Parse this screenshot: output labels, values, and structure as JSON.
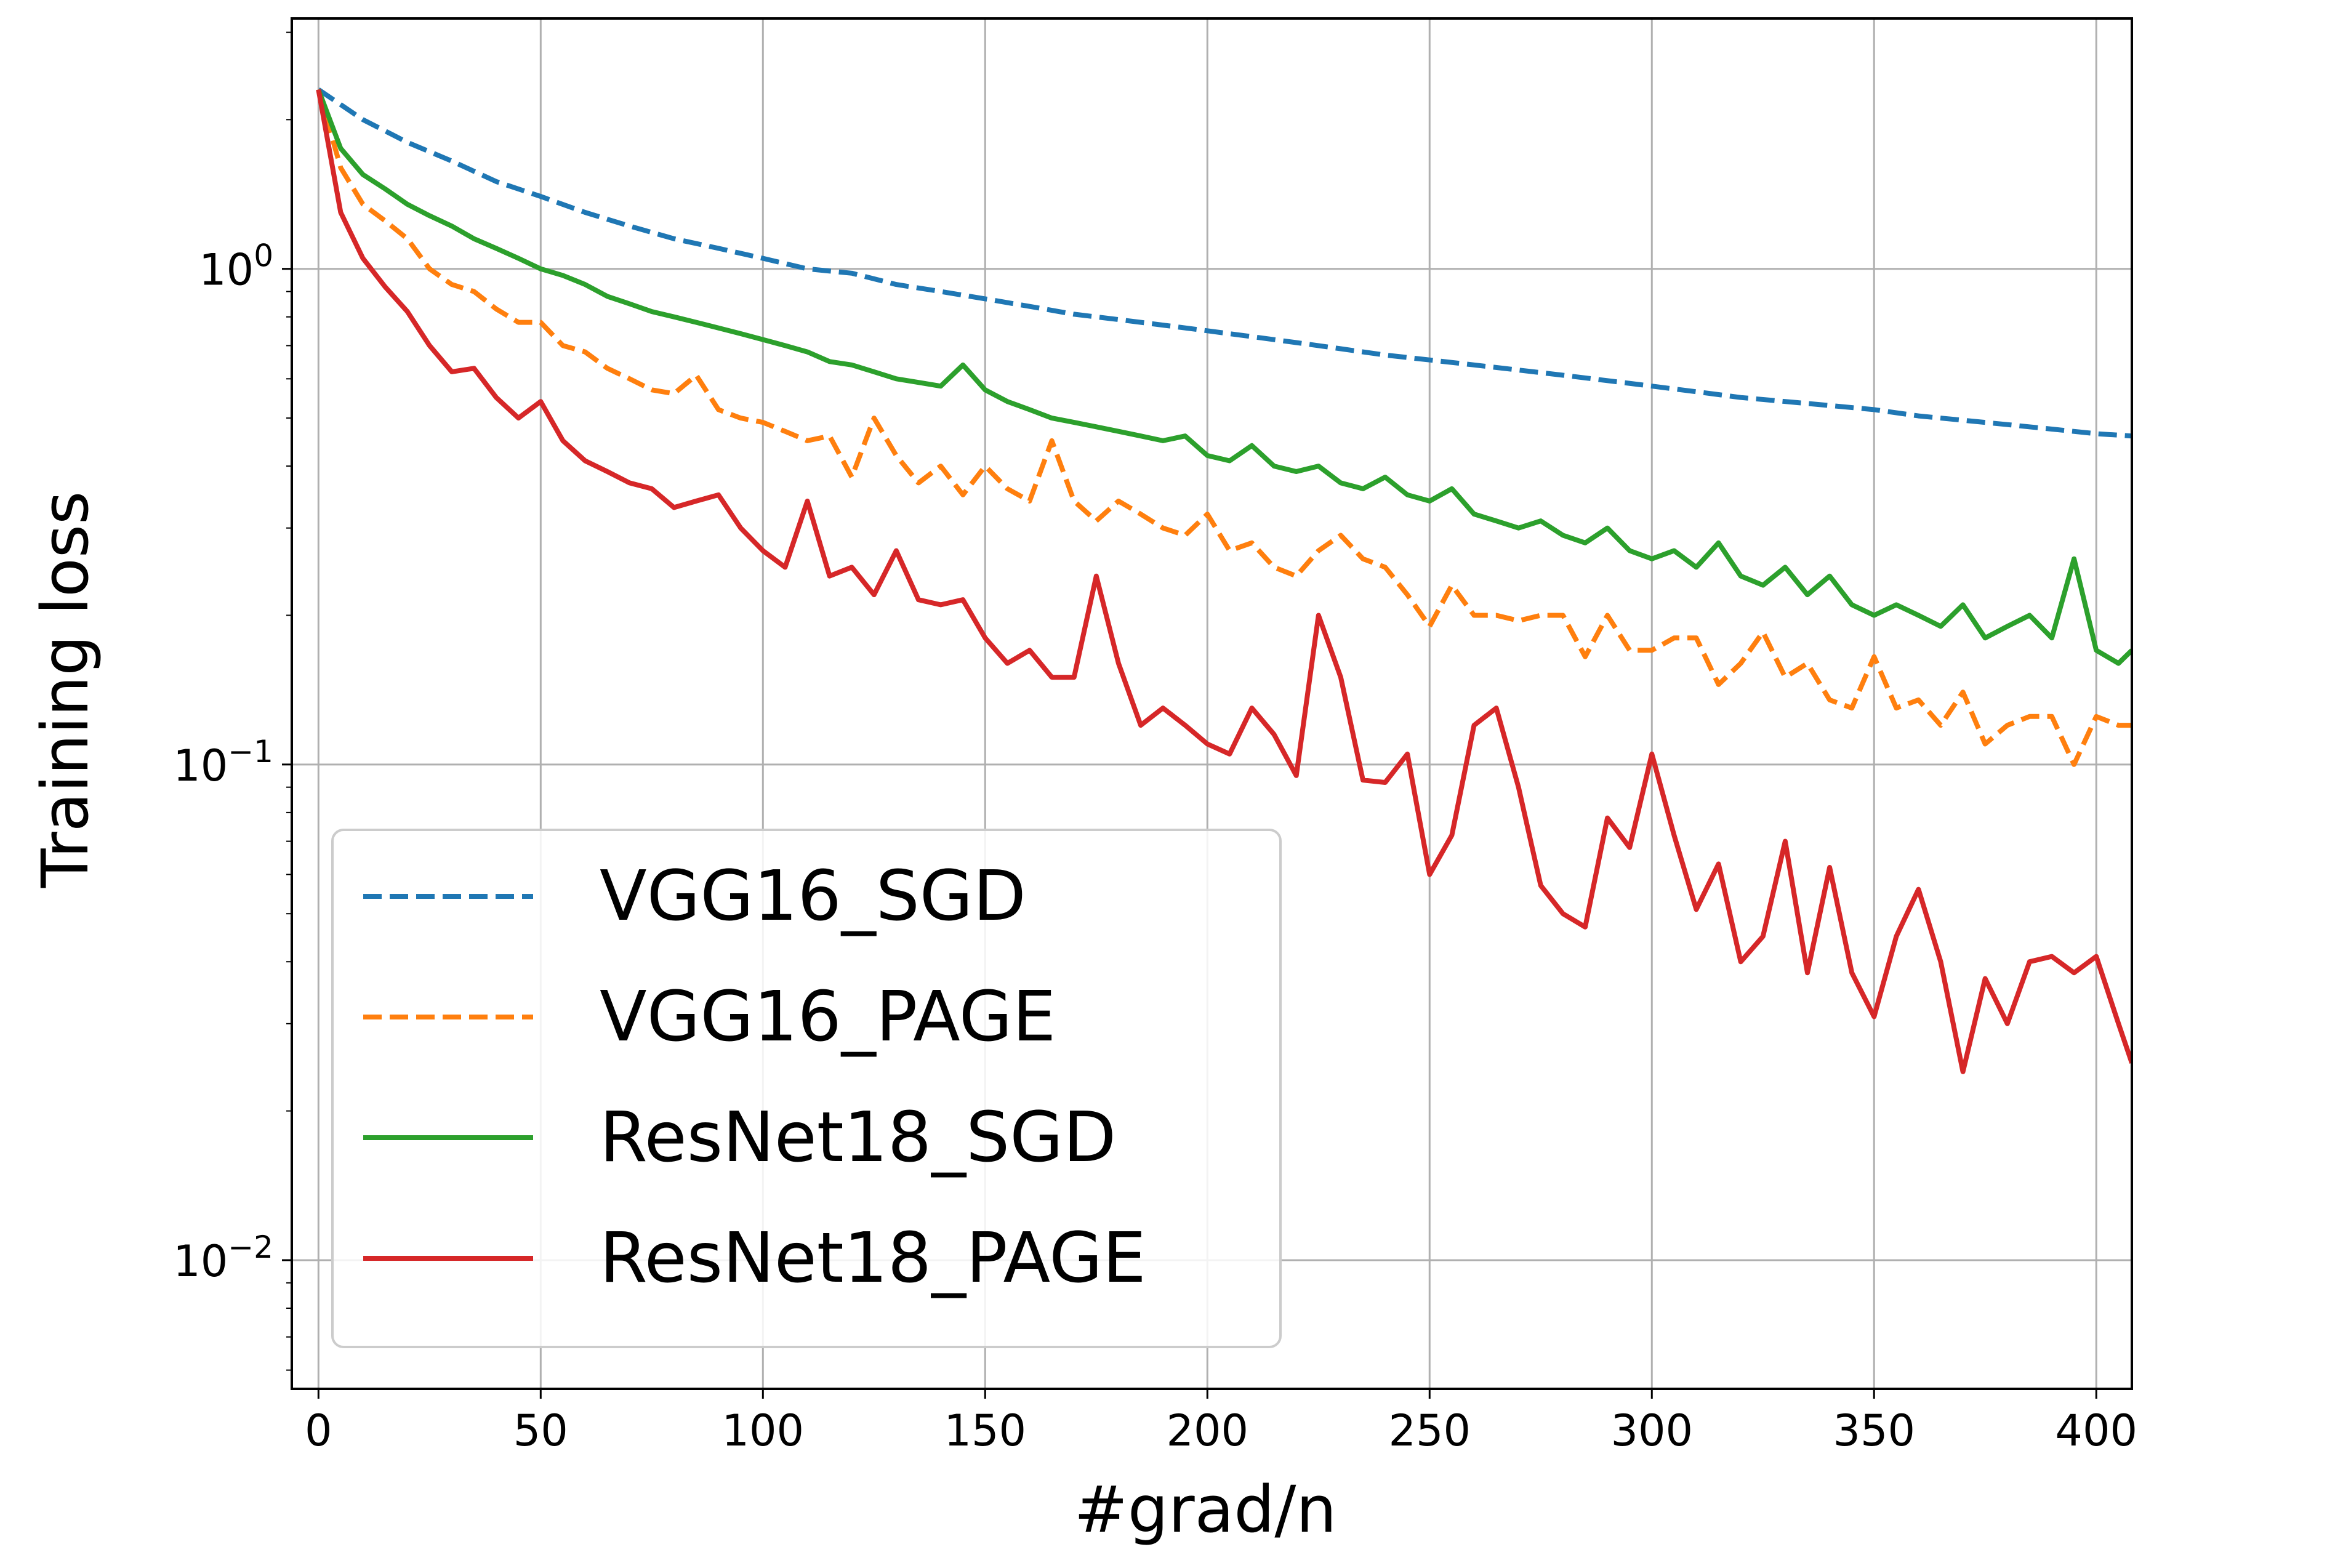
{
  "chart_data": {
    "type": "line",
    "title": "",
    "xlabel": "#grad/n",
    "ylabel": "Training loss",
    "xlim": [
      -6,
      408
    ],
    "ylim": [
      0.0055,
      3.2
    ],
    "yscale": "log",
    "grid": true,
    "legend_position": "lower-left",
    "x_ticks": [
      0,
      50,
      100,
      150,
      200,
      250,
      300,
      350,
      400
    ],
    "y_ticks": [
      {
        "value": 1,
        "base": "10",
        "exp": "0"
      },
      {
        "value": 0.1,
        "base": "10",
        "exp": "−1"
      },
      {
        "value": 0.01,
        "base": "10",
        "exp": "−2"
      }
    ],
    "series": [
      {
        "name": "VGG16_SGD",
        "color": "#1f77b4",
        "dashed": true,
        "x": [
          0,
          10,
          20,
          30,
          40,
          50,
          60,
          70,
          80,
          90,
          100,
          110,
          120,
          130,
          140,
          150,
          160,
          170,
          180,
          190,
          200,
          210,
          220,
          230,
          240,
          250,
          260,
          270,
          280,
          290,
          300,
          310,
          320,
          330,
          340,
          350,
          360,
          370,
          380,
          390,
          400,
          408
        ],
        "y": [
          2.3,
          2.0,
          1.8,
          1.65,
          1.5,
          1.4,
          1.3,
          1.22,
          1.15,
          1.1,
          1.05,
          1.0,
          0.98,
          0.93,
          0.9,
          0.87,
          0.84,
          0.81,
          0.79,
          0.77,
          0.75,
          0.73,
          0.71,
          0.69,
          0.67,
          0.655,
          0.64,
          0.625,
          0.61,
          0.595,
          0.58,
          0.565,
          0.55,
          0.54,
          0.53,
          0.52,
          0.505,
          0.495,
          0.485,
          0.475,
          0.465,
          0.46
        ]
      },
      {
        "name": "VGG16_PAGE",
        "color": "#ff7f0e",
        "dashed": true,
        "x": [
          0,
          5,
          10,
          15,
          20,
          25,
          30,
          35,
          40,
          45,
          50,
          55,
          60,
          65,
          70,
          75,
          80,
          85,
          90,
          95,
          100,
          105,
          110,
          115,
          120,
          125,
          130,
          135,
          140,
          145,
          150,
          155,
          160,
          165,
          170,
          175,
          180,
          185,
          190,
          195,
          200,
          205,
          210,
          215,
          220,
          225,
          230,
          235,
          240,
          245,
          250,
          255,
          260,
          265,
          270,
          275,
          280,
          285,
          290,
          295,
          300,
          305,
          310,
          315,
          320,
          325,
          330,
          335,
          340,
          345,
          350,
          355,
          360,
          365,
          370,
          375,
          380,
          385,
          390,
          395,
          400,
          405,
          408
        ],
        "y": [
          2.3,
          1.6,
          1.35,
          1.25,
          1.15,
          1.0,
          0.93,
          0.9,
          0.83,
          0.78,
          0.78,
          0.7,
          0.68,
          0.63,
          0.6,
          0.57,
          0.56,
          0.61,
          0.52,
          0.5,
          0.49,
          0.47,
          0.45,
          0.46,
          0.38,
          0.5,
          0.42,
          0.37,
          0.4,
          0.35,
          0.4,
          0.36,
          0.34,
          0.45,
          0.34,
          0.31,
          0.34,
          0.32,
          0.3,
          0.29,
          0.32,
          0.27,
          0.28,
          0.25,
          0.24,
          0.27,
          0.29,
          0.26,
          0.25,
          0.22,
          0.19,
          0.23,
          0.2,
          0.2,
          0.195,
          0.2,
          0.2,
          0.165,
          0.2,
          0.17,
          0.17,
          0.18,
          0.18,
          0.145,
          0.16,
          0.185,
          0.15,
          0.16,
          0.135,
          0.13,
          0.165,
          0.13,
          0.135,
          0.12,
          0.14,
          0.11,
          0.12,
          0.125,
          0.125,
          0.1,
          0.125,
          0.12,
          0.12
        ]
      },
      {
        "name": "ResNet18_SGD",
        "color": "#2ca02c",
        "dashed": false,
        "x": [
          0,
          5,
          10,
          15,
          20,
          25,
          30,
          35,
          40,
          45,
          50,
          55,
          60,
          65,
          70,
          75,
          80,
          85,
          90,
          95,
          100,
          105,
          110,
          115,
          120,
          125,
          130,
          135,
          140,
          145,
          150,
          155,
          160,
          165,
          170,
          175,
          180,
          185,
          190,
          195,
          200,
          205,
          210,
          215,
          220,
          225,
          230,
          235,
          240,
          245,
          250,
          255,
          260,
          265,
          270,
          275,
          280,
          285,
          290,
          295,
          300,
          305,
          310,
          315,
          320,
          325,
          330,
          335,
          340,
          345,
          350,
          355,
          360,
          365,
          370,
          375,
          380,
          385,
          390,
          395,
          400,
          405,
          408
        ],
        "y": [
          2.3,
          1.75,
          1.55,
          1.45,
          1.35,
          1.28,
          1.22,
          1.15,
          1.1,
          1.05,
          1.0,
          0.97,
          0.93,
          0.88,
          0.85,
          0.82,
          0.8,
          0.78,
          0.76,
          0.74,
          0.72,
          0.7,
          0.68,
          0.65,
          0.64,
          0.62,
          0.6,
          0.59,
          0.58,
          0.64,
          0.57,
          0.54,
          0.52,
          0.5,
          0.49,
          0.48,
          0.47,
          0.46,
          0.45,
          0.46,
          0.42,
          0.41,
          0.44,
          0.4,
          0.39,
          0.4,
          0.37,
          0.36,
          0.38,
          0.35,
          0.34,
          0.36,
          0.32,
          0.31,
          0.3,
          0.31,
          0.29,
          0.28,
          0.3,
          0.27,
          0.26,
          0.27,
          0.25,
          0.28,
          0.24,
          0.23,
          0.25,
          0.22,
          0.24,
          0.21,
          0.2,
          0.21,
          0.2,
          0.19,
          0.21,
          0.18,
          0.19,
          0.2,
          0.18,
          0.26,
          0.17,
          0.16,
          0.17
        ]
      },
      {
        "name": "ResNet18_PAGE",
        "color": "#d62728",
        "dashed": false,
        "x": [
          0,
          5,
          10,
          15,
          20,
          25,
          30,
          35,
          40,
          45,
          50,
          55,
          60,
          65,
          70,
          75,
          80,
          85,
          90,
          95,
          100,
          105,
          110,
          115,
          120,
          125,
          130,
          135,
          140,
          145,
          150,
          155,
          160,
          165,
          170,
          175,
          180,
          185,
          190,
          195,
          200,
          205,
          210,
          215,
          220,
          225,
          230,
          235,
          240,
          245,
          250,
          255,
          260,
          265,
          270,
          275,
          280,
          285,
          290,
          295,
          300,
          305,
          310,
          315,
          320,
          325,
          330,
          335,
          340,
          345,
          350,
          355,
          360,
          365,
          370,
          375,
          380,
          385,
          390,
          395,
          400,
          405,
          408
        ],
        "y": [
          2.3,
          1.3,
          1.05,
          0.92,
          0.82,
          0.7,
          0.62,
          0.63,
          0.55,
          0.5,
          0.54,
          0.45,
          0.41,
          0.39,
          0.37,
          0.36,
          0.33,
          0.34,
          0.35,
          0.3,
          0.27,
          0.25,
          0.34,
          0.24,
          0.25,
          0.22,
          0.27,
          0.215,
          0.21,
          0.215,
          0.18,
          0.16,
          0.17,
          0.15,
          0.15,
          0.24,
          0.16,
          0.12,
          0.13,
          0.12,
          0.11,
          0.105,
          0.13,
          0.115,
          0.095,
          0.2,
          0.15,
          0.093,
          0.092,
          0.105,
          0.06,
          0.072,
          0.12,
          0.13,
          0.09,
          0.057,
          0.05,
          0.047,
          0.078,
          0.068,
          0.105,
          0.072,
          0.051,
          0.063,
          0.04,
          0.045,
          0.07,
          0.038,
          0.062,
          0.038,
          0.031,
          0.045,
          0.056,
          0.04,
          0.024,
          0.037,
          0.03,
          0.04,
          0.041,
          0.038,
          0.041,
          0.03,
          0.025
        ]
      }
    ]
  }
}
